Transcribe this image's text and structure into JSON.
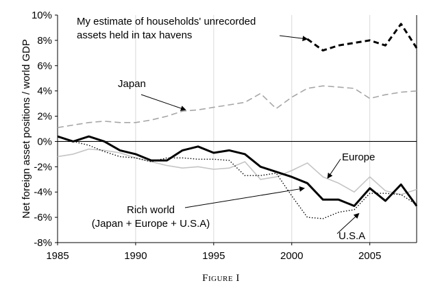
{
  "caption": "Figure I",
  "chart_data": {
    "type": "line",
    "ylabel": "Net foreign asset positions / world GDP",
    "xlabel": "",
    "xlim": [
      1985,
      2008
    ],
    "ylim": [
      -8,
      10
    ],
    "x_ticks": [
      1985,
      1990,
      1995,
      2000,
      2005
    ],
    "y_ticks": [
      "-8%",
      "-6%",
      "-4%",
      "-2%",
      "0%",
      "2%",
      "4%",
      "6%",
      "8%",
      "10%"
    ],
    "grid": "vertical",
    "series": [
      {
        "name": "My estimate of households' unrecorded assets held in tax havens",
        "style": "heavy-dashed",
        "color": "#000000",
        "x": [
          2001,
          2002,
          2003,
          2004,
          2005,
          2006,
          2007,
          2008
        ],
        "values": [
          8.1,
          7.2,
          7.6,
          7.8,
          8.0,
          7.6,
          9.3,
          7.4
        ]
      },
      {
        "name": "Japan",
        "style": "dashed",
        "color": "#a6a6a6",
        "x": [
          1985,
          1986,
          1987,
          1988,
          1989,
          1990,
          1991,
          1992,
          1993,
          1994,
          1995,
          1996,
          1997,
          1998,
          1999,
          2000,
          2001,
          2002,
          2003,
          2004,
          2005,
          2006,
          2007,
          2008
        ],
        "values": [
          1.1,
          1.3,
          1.5,
          1.6,
          1.5,
          1.5,
          1.7,
          2.0,
          2.4,
          2.5,
          2.7,
          2.9,
          3.1,
          3.8,
          2.6,
          3.5,
          4.2,
          4.4,
          4.3,
          4.2,
          3.4,
          3.7,
          3.9,
          4.0
        ]
      },
      {
        "name": "Europe",
        "style": "solid-thin",
        "color": "#c4c4c4",
        "x": [
          1985,
          1986,
          1987,
          1988,
          1989,
          1990,
          1991,
          1992,
          1993,
          1994,
          1995,
          1996,
          1997,
          1998,
          1999,
          2000,
          2001,
          2002,
          2003,
          2004,
          2005,
          2006,
          2007,
          2008
        ],
        "values": [
          -1.2,
          -1.0,
          -0.6,
          -0.7,
          -0.9,
          -1.3,
          -1.6,
          -1.9,
          -2.1,
          -2.0,
          -2.2,
          -2.1,
          -1.6,
          -3.0,
          -2.8,
          -2.3,
          -1.7,
          -2.8,
          -3.3,
          -4.0,
          -2.8,
          -3.9,
          -4.2,
          -3.8
        ]
      },
      {
        "name": "U.S.A",
        "style": "dotted",
        "color": "#000000",
        "x": [
          1985,
          1986,
          1987,
          1988,
          1989,
          1990,
          1991,
          1992,
          1993,
          1994,
          1995,
          1996,
          1997,
          1998,
          1999,
          2000,
          2001,
          2002,
          2003,
          2004,
          2005,
          2006,
          2007,
          2008
        ],
        "values": [
          0.4,
          0.0,
          -0.3,
          -0.8,
          -1.2,
          -1.3,
          -1.6,
          -1.3,
          -1.3,
          -1.4,
          -1.4,
          -1.5,
          -2.7,
          -2.7,
          -2.5,
          -4.3,
          -6.0,
          -6.1,
          -5.6,
          -5.4,
          -4.1,
          -4.1,
          -4.2,
          -5.0
        ]
      },
      {
        "name": "Rich world (Japan + Europe + U.S.A)",
        "style": "solid-thick",
        "color": "#000000",
        "x": [
          1985,
          1986,
          1987,
          1988,
          1989,
          1990,
          1991,
          1992,
          1993,
          1994,
          1995,
          1996,
          1997,
          1998,
          1999,
          2000,
          2001,
          2002,
          2003,
          2004,
          2005,
          2006,
          2007,
          2008
        ],
        "values": [
          0.4,
          0.0,
          0.4,
          0.0,
          -0.7,
          -1.0,
          -1.5,
          -1.5,
          -0.7,
          -0.4,
          -0.9,
          -0.7,
          -1.0,
          -2.0,
          -2.4,
          -2.8,
          -3.3,
          -4.6,
          -4.6,
          -5.1,
          -3.7,
          -4.7,
          -3.4,
          -5.1
        ]
      }
    ],
    "annotations": [
      {
        "lines": [
          "My estimate of households' unrecorded",
          "assets held in tax havens"
        ],
        "arrow_to": [
          2001,
          8.1
        ]
      },
      {
        "lines": [
          "Japan"
        ],
        "arrow_to": [
          1993.2,
          2.5
        ]
      },
      {
        "lines": [
          "Europe"
        ],
        "arrow_to": [
          2002.3,
          -2.9
        ]
      },
      {
        "lines": [
          "Rich world",
          "(Japan + Europe + U.S.A)"
        ],
        "arrow_to": [
          2000.8,
          -3.7
        ]
      },
      {
        "lines": [
          "U.S.A"
        ],
        "arrow_to": [
          2004.3,
          -5.7
        ]
      }
    ]
  }
}
